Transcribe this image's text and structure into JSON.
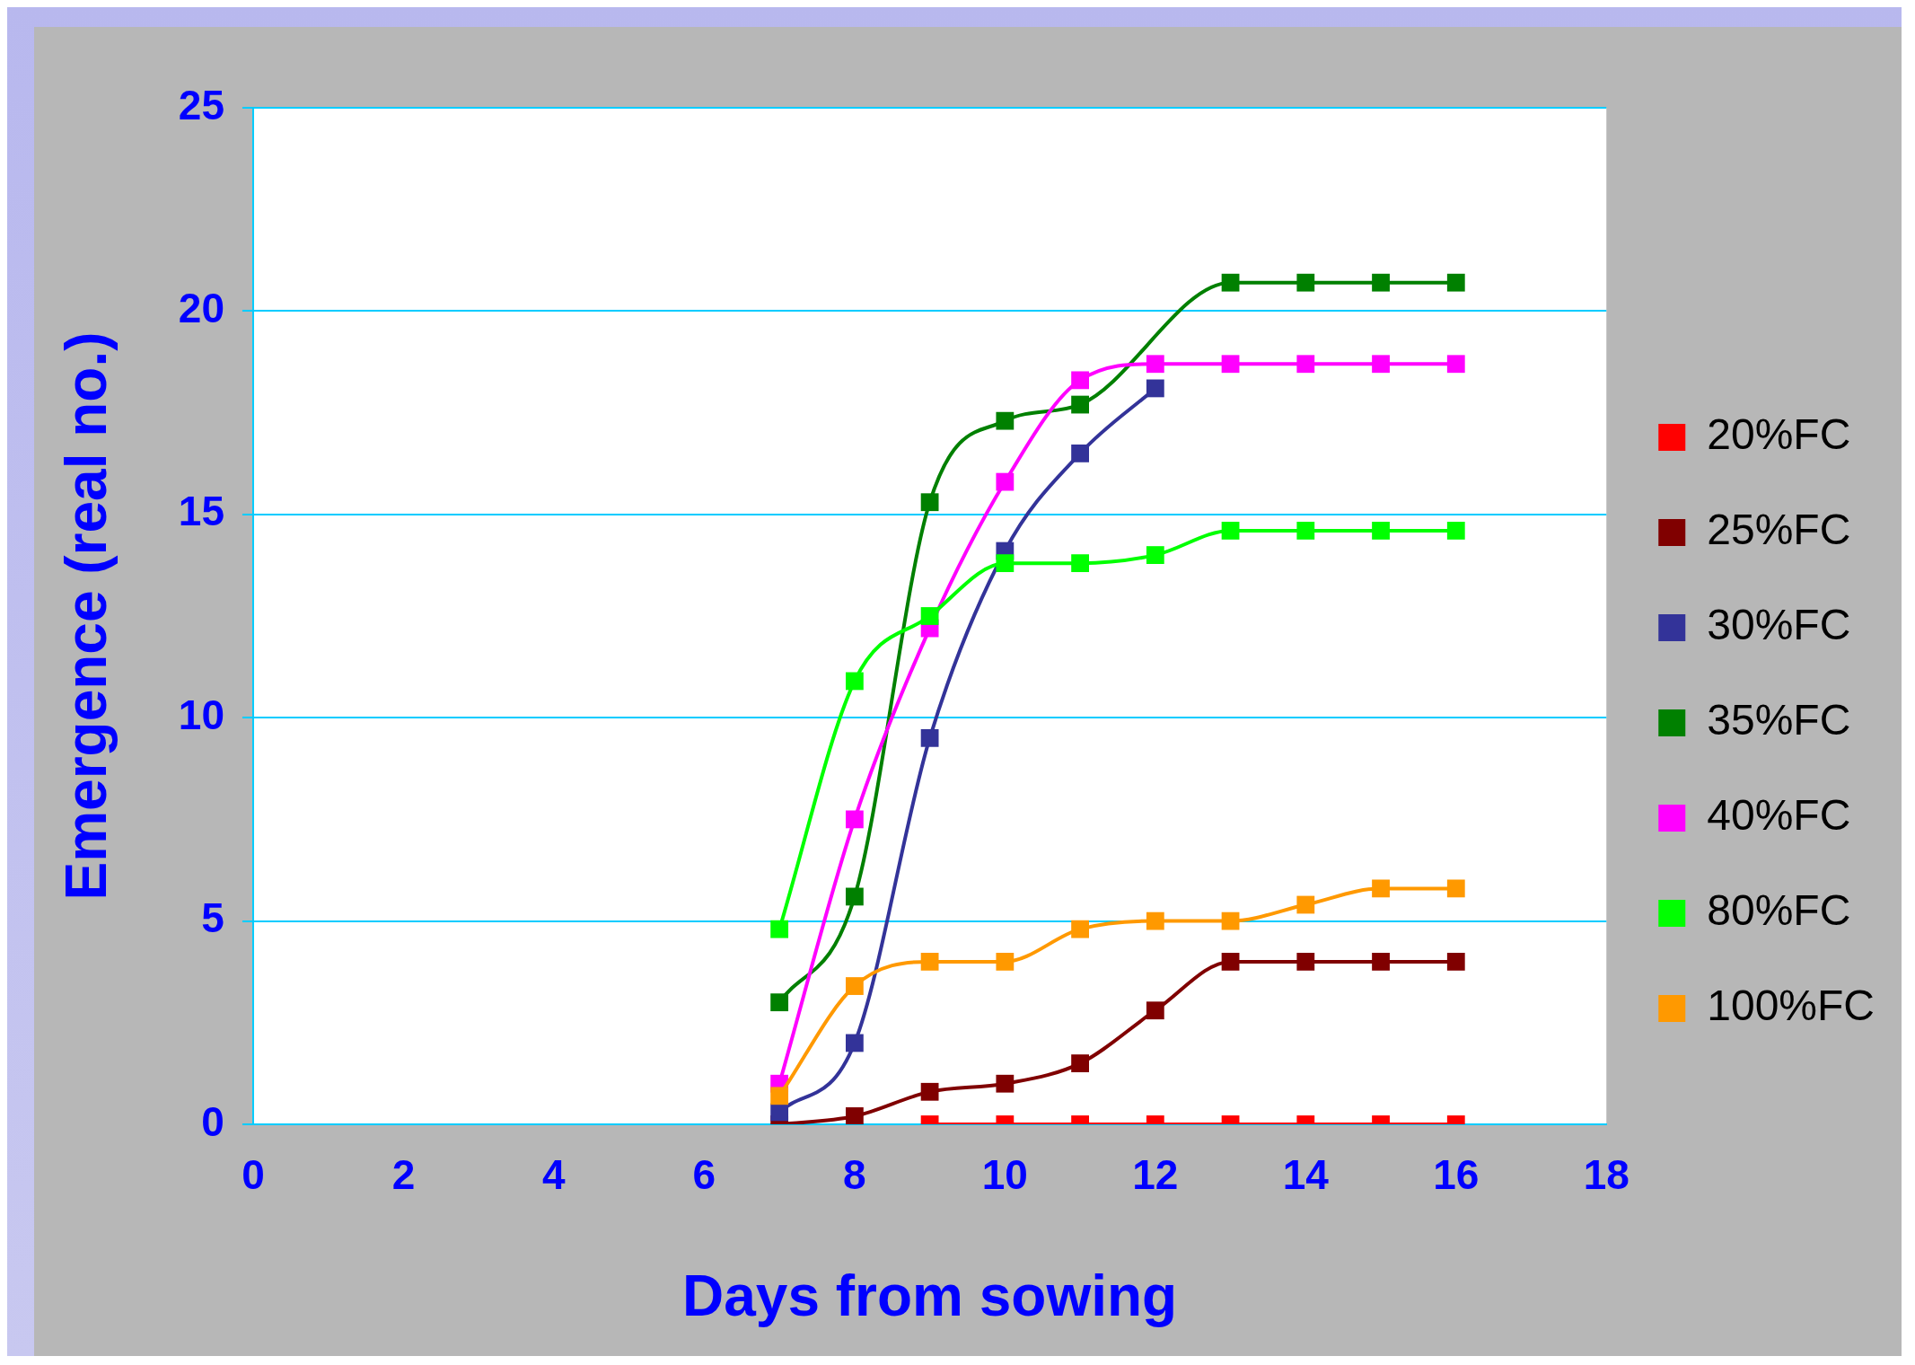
{
  "chart_data": {
    "type": "line",
    "xlabel": "Days from sowing",
    "ylabel": "Emergence (real no.)",
    "x": [
      7,
      8,
      9,
      10,
      11,
      12,
      13,
      14,
      15,
      16
    ],
    "xlim": [
      0,
      18
    ],
    "xticks": [
      0,
      2,
      4,
      6,
      8,
      10,
      12,
      14,
      16,
      18
    ],
    "ylim": [
      0,
      25
    ],
    "yticks": [
      0,
      5,
      10,
      15,
      20,
      25
    ],
    "grid": "y",
    "legend": "right",
    "marker": "square",
    "line_style": "solid",
    "series": [
      {
        "name": "20%FC",
        "color": "#ff0000",
        "values": [
          null,
          null,
          0,
          0,
          0,
          0,
          0,
          0,
          0,
          0
        ]
      },
      {
        "name": "25%FC",
        "color": "#800000",
        "values": [
          0,
          0.2,
          0.8,
          1.0,
          1.5,
          2.8,
          4.0,
          4.0,
          4.0,
          4.0
        ]
      },
      {
        "name": "30%FC",
        "color": "#333399",
        "values": [
          0.3,
          2.0,
          9.5,
          14.1,
          16.5,
          18.1,
          null,
          null,
          null,
          null
        ]
      },
      {
        "name": "35%FC",
        "color": "#008000",
        "values": [
          3.0,
          5.6,
          15.3,
          17.3,
          17.7,
          null,
          20.7,
          20.7,
          20.7,
          20.7
        ]
      },
      {
        "name": "40%FC",
        "color": "#ff00ff",
        "values": [
          1.0,
          7.5,
          12.2,
          15.8,
          18.3,
          18.7,
          18.7,
          18.7,
          18.7,
          18.7
        ]
      },
      {
        "name": "80%FC",
        "color": "#00ff00",
        "values": [
          4.8,
          10.9,
          12.5,
          13.8,
          13.8,
          14.0,
          14.6,
          14.6,
          14.6,
          14.6
        ]
      },
      {
        "name": "100%FC",
        "color": "#ff9900",
        "values": [
          0.7,
          3.4,
          4.0,
          4.0,
          4.8,
          5.0,
          5.0,
          5.4,
          5.8,
          5.8
        ]
      }
    ]
  }
}
